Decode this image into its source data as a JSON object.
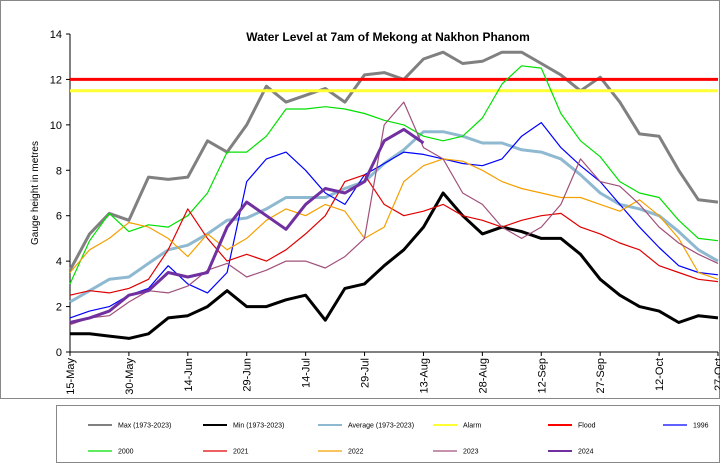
{
  "chart_data": {
    "type": "line",
    "title": "Water Level at 7am of Mekong at Nakhon Phanom",
    "y_label": "Gauge height in metres",
    "categories": [
      "15-May",
      null,
      null,
      "30-May",
      null,
      null,
      "14-Jun",
      null,
      null,
      "29-Jun",
      null,
      null,
      "14-Jul",
      null,
      null,
      "29-Jul",
      null,
      null,
      "13-Aug",
      null,
      null,
      "28-Aug",
      null,
      null,
      "12-Sep",
      null,
      null,
      "27-Sep",
      null,
      null,
      "12-Oct",
      null,
      null,
      "27-Oct"
    ],
    "ylim": [
      0,
      14
    ],
    "yticks": [
      0,
      2,
      4,
      6,
      8,
      10,
      12,
      14
    ],
    "series": [
      {
        "name": "Max (1973-2023)",
        "color": "#808080",
        "width": 3,
        "values": [
          3.6,
          5.2,
          6.1,
          5.8,
          7.7,
          7.6,
          7.7,
          9.3,
          8.8,
          10.0,
          11.7,
          11.0,
          11.3,
          11.6,
          11.0,
          12.2,
          12.3,
          12.0,
          12.9,
          13.2,
          12.7,
          12.8,
          13.2,
          13.2,
          12.7,
          12.2,
          11.5,
          12.1,
          11.0,
          9.6,
          9.5,
          8.0,
          6.7,
          6.6
        ]
      },
      {
        "name": "Min (1973-2023)",
        "color": "#000000",
        "width": 3,
        "values": [
          0.8,
          0.8,
          0.7,
          0.6,
          0.8,
          1.5,
          1.6,
          2.0,
          2.7,
          2.0,
          2.0,
          2.3,
          2.5,
          1.4,
          2.8,
          3.0,
          3.8,
          4.5,
          5.5,
          7.0,
          6.0,
          5.2,
          5.5,
          5.3,
          5.0,
          5.0,
          4.3,
          3.2,
          2.5,
          2.0,
          1.8,
          1.3,
          1.6,
          1.5
        ]
      },
      {
        "name": "Average (1973-2023)",
        "color": "#8fb9d0",
        "width": 3,
        "values": [
          2.2,
          2.7,
          3.2,
          3.3,
          3.9,
          4.5,
          4.7,
          5.2,
          5.8,
          5.9,
          6.3,
          6.8,
          6.8,
          6.8,
          7.2,
          7.5,
          8.3,
          8.9,
          9.7,
          9.7,
          9.5,
          9.2,
          9.2,
          8.9,
          8.8,
          8.5,
          7.8,
          7.0,
          6.5,
          6.3,
          6.0,
          5.3,
          4.5,
          4.0
        ]
      },
      {
        "name": "Alarm",
        "color": "#ffff33",
        "width": 3,
        "values": [
          11.5,
          11.5,
          11.5,
          11.5,
          11.5,
          11.5,
          11.5,
          11.5,
          11.5,
          11.5,
          11.5,
          11.5,
          11.5,
          11.5,
          11.5,
          11.5,
          11.5,
          11.5,
          11.5,
          11.5,
          11.5,
          11.5,
          11.5,
          11.5,
          11.5,
          11.5,
          11.5,
          11.5,
          11.5,
          11.5,
          11.5,
          11.5,
          11.5,
          11.5
        ]
      },
      {
        "name": "Flood",
        "color": "#ff0000",
        "width": 3,
        "values": [
          12,
          12,
          12,
          12,
          12,
          12,
          12,
          12,
          12,
          12,
          12,
          12,
          12,
          12,
          12,
          12,
          12,
          12,
          12,
          12,
          12,
          12,
          12,
          12,
          12,
          12,
          12,
          12,
          12,
          12,
          12,
          12,
          12,
          12
        ]
      },
      {
        "name": "1996",
        "color": "#0000ff",
        "width": 1.2,
        "values": [
          1.5,
          1.8,
          2.0,
          2.5,
          2.8,
          3.8,
          3.0,
          2.6,
          3.5,
          7.5,
          8.5,
          8.8,
          8.0,
          7.0,
          6.5,
          7.8,
          8.3,
          8.8,
          8.7,
          8.5,
          8.3,
          8.2,
          8.5,
          9.5,
          10.1,
          9.0,
          8.2,
          7.5,
          6.5,
          5.5,
          4.6,
          3.8,
          3.5,
          3.4
        ]
      },
      {
        "name": "2000",
        "color": "#00e000",
        "width": 1.2,
        "values": [
          3.0,
          4.9,
          6.1,
          5.3,
          5.6,
          5.5,
          6.0,
          7.0,
          8.8,
          8.8,
          9.5,
          10.7,
          10.7,
          10.8,
          10.7,
          10.5,
          10.2,
          10.0,
          9.5,
          9.3,
          9.5,
          10.3,
          11.8,
          12.6,
          12.5,
          10.5,
          9.3,
          8.6,
          7.5,
          7.0,
          6.8,
          5.8,
          5.0,
          4.9
        ]
      },
      {
        "name": "2021",
        "color": "#e00000",
        "width": 1.2,
        "values": [
          2.5,
          2.7,
          2.6,
          2.8,
          3.2,
          4.5,
          6.3,
          5.0,
          4.0,
          4.3,
          4.0,
          4.5,
          5.2,
          6.0,
          7.5,
          7.8,
          6.5,
          6.0,
          6.2,
          6.5,
          6.0,
          5.8,
          5.5,
          5.8,
          6.0,
          6.1,
          5.5,
          5.2,
          4.8,
          4.5,
          3.8,
          3.5,
          3.2,
          3.1
        ]
      },
      {
        "name": "2022",
        "color": "#f5a000",
        "width": 1.2,
        "values": [
          3.5,
          4.5,
          5.0,
          5.7,
          5.5,
          5.0,
          4.2,
          5.2,
          4.5,
          5.0,
          5.8,
          6.3,
          6.0,
          6.5,
          6.2,
          5.0,
          5.5,
          7.5,
          8.2,
          8.5,
          8.4,
          8.0,
          7.5,
          7.2,
          7.0,
          6.8,
          6.8,
          6.5,
          6.2,
          6.7,
          6.0,
          5.0,
          3.5,
          3.2
        ]
      },
      {
        "name": "2023",
        "color": "#a0507a",
        "width": 1.2,
        "values": [
          1.2,
          1.5,
          1.6,
          2.2,
          2.7,
          2.6,
          2.9,
          3.6,
          3.9,
          3.3,
          3.6,
          4.0,
          4.0,
          3.7,
          4.2,
          5.0,
          10.0,
          11.0,
          9.0,
          8.5,
          7.0,
          6.5,
          5.5,
          5.0,
          5.5,
          6.5,
          8.5,
          7.5,
          7.3,
          6.5,
          5.5,
          4.8,
          4.3,
          3.9
        ]
      },
      {
        "name": "2024",
        "color": "#7030a0",
        "width": 3,
        "values": [
          1.3,
          1.5,
          1.8,
          2.5,
          2.7,
          3.5,
          3.3,
          3.5,
          5.5,
          6.6,
          6.0,
          5.4,
          6.5,
          7.2,
          7.0,
          7.5,
          9.3,
          9.8,
          9.2,
          null,
          null,
          null,
          null,
          null,
          null,
          null,
          null,
          null,
          null,
          null,
          null,
          null,
          null,
          null
        ]
      }
    ]
  }
}
